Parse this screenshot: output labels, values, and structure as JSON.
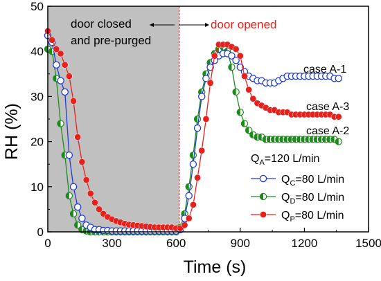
{
  "chart_data": {
    "type": "scatter",
    "xlabel": "Time (s)",
    "ylabel": "RH (%)",
    "xlim": [
      0,
      1500
    ],
    "ylim": [
      0,
      50
    ],
    "xticks": [
      0,
      300,
      600,
      900,
      1200,
      1500
    ],
    "yticks": [
      0,
      10,
      20,
      30,
      40,
      50
    ],
    "shaded_region": {
      "x0": 0,
      "x1": 615,
      "color": "#c0c0c0"
    },
    "divider_x": 615,
    "annotations": {
      "closed_line1": "door closed",
      "closed_line2": "and pre-purged",
      "opened": "door opened",
      "opened_color": "#e8201c",
      "case_a1": "case A-1",
      "case_a3": "case A-3",
      "case_a2": "case A-2"
    },
    "legend": {
      "title_main": "Q",
      "title_sub": "A",
      "title_rest": "=120 L/min",
      "placement": "bottom-right"
    },
    "series": [
      {
        "sym": "Q",
        "sub": "C",
        "label_rest": "=80 L/min",
        "color": "#1f3ad6",
        "marker": "open",
        "x": [
          0,
          20,
          40,
          60,
          80,
          100,
          120,
          140,
          160,
          180,
          200,
          220,
          240,
          260,
          280,
          300,
          320,
          340,
          360,
          380,
          400,
          420,
          440,
          460,
          480,
          500,
          520,
          540,
          560,
          580,
          600,
          620,
          640,
          660,
          680,
          700,
          720,
          740,
          760,
          780,
          800,
          820,
          840,
          860,
          880,
          900,
          920,
          940,
          960,
          980,
          1000,
          1020,
          1040,
          1060,
          1080,
          1100,
          1120,
          1140,
          1160,
          1180,
          1200,
          1220,
          1240,
          1260,
          1280,
          1300,
          1320,
          1340,
          1360
        ],
        "y": [
          43.5,
          42,
          37,
          33.5,
          31,
          17,
          10,
          5.5,
          3,
          1.5,
          1,
          0.5,
          0.5,
          0.3,
          0.3,
          0.2,
          0.2,
          0.2,
          0.2,
          0.2,
          0.2,
          0.2,
          0.2,
          0.2,
          0.2,
          0.2,
          0.2,
          0.2,
          0.2,
          0.2,
          0.2,
          0.5,
          3,
          8,
          15,
          23,
          30,
          34,
          36.5,
          38,
          39,
          39.5,
          39.5,
          39,
          38,
          36.5,
          35.5,
          34.5,
          34,
          33.5,
          33.5,
          33,
          33,
          33,
          33.5,
          34,
          34.5,
          34.5,
          34.5,
          34.5,
          34.5,
          34.5,
          34.5,
          34.5,
          34.5,
          34.5,
          34.5,
          34,
          34
        ]
      },
      {
        "sym": "Q",
        "sub": "D",
        "label_rest": "=80 L/min",
        "color": "#1e8a1e",
        "marker": "half",
        "x": [
          0,
          20,
          40,
          60,
          80,
          100,
          120,
          140,
          160,
          180,
          200,
          220,
          240,
          260,
          280,
          300,
          320,
          340,
          360,
          380,
          400,
          420,
          440,
          460,
          480,
          500,
          520,
          540,
          560,
          580,
          600,
          620,
          640,
          660,
          680,
          700,
          720,
          740,
          760,
          780,
          800,
          820,
          840,
          860,
          880,
          900,
          920,
          940,
          960,
          980,
          1000,
          1020,
          1040,
          1060,
          1080,
          1100,
          1120,
          1140,
          1160,
          1180,
          1200,
          1220,
          1240,
          1260,
          1280,
          1300,
          1320,
          1340,
          1360
        ],
        "y": [
          40.5,
          40,
          34,
          24,
          17,
          8,
          4,
          1.5,
          0.5,
          0.2,
          0,
          0,
          0,
          0,
          0,
          0,
          0,
          0,
          0,
          0,
          0,
          0,
          0,
          0,
          0,
          0,
          0,
          0,
          0,
          0,
          0,
          1,
          4,
          10,
          17,
          25,
          31,
          35,
          37.5,
          39.5,
          40.5,
          41,
          40,
          36.5,
          31,
          26.5,
          24,
          22.5,
          21.5,
          21,
          21,
          20.5,
          20.5,
          20.5,
          20.5,
          20.5,
          20.5,
          20.5,
          20.5,
          20.5,
          20.5,
          20.5,
          20.5,
          20.5,
          20.5,
          20.5,
          20.5,
          20.5,
          20
        ]
      },
      {
        "sym": "Q",
        "sub": "P",
        "label_rest": "=80 L/min",
        "color": "#e8201c",
        "marker": "filled",
        "x": [
          0,
          20,
          40,
          60,
          80,
          100,
          120,
          140,
          160,
          180,
          200,
          220,
          240,
          260,
          280,
          300,
          320,
          340,
          360,
          380,
          400,
          420,
          440,
          460,
          480,
          500,
          520,
          540,
          560,
          580,
          600,
          620,
          640,
          660,
          680,
          700,
          720,
          740,
          760,
          780,
          800,
          820,
          840,
          860,
          880,
          900,
          920,
          940,
          960,
          980,
          1000,
          1020,
          1040,
          1060,
          1080,
          1100,
          1120,
          1140,
          1160,
          1180,
          1200,
          1220,
          1240,
          1260,
          1280,
          1300,
          1320,
          1340,
          1360
        ],
        "y": [
          44.5,
          42.5,
          40.5,
          39.5,
          37,
          34.5,
          29,
          21,
          15.5,
          11.5,
          8.5,
          6.5,
          5,
          4,
          3.3,
          2.8,
          2.4,
          2.1,
          1.8,
          1.6,
          1.5,
          1.4,
          1.3,
          1.2,
          1.1,
          1,
          1,
          1,
          1,
          1,
          0.8,
          0.8,
          1.5,
          3,
          6,
          12,
          18,
          25,
          33,
          39,
          41.5,
          41.5,
          41.5,
          41,
          40.5,
          39,
          34.5,
          31.5,
          29.5,
          28.5,
          28,
          27.5,
          27,
          27,
          26.5,
          26.5,
          26.5,
          26,
          26,
          26,
          26,
          26,
          26,
          26,
          26,
          26,
          26,
          25.5,
          25.5
        ]
      }
    ]
  }
}
